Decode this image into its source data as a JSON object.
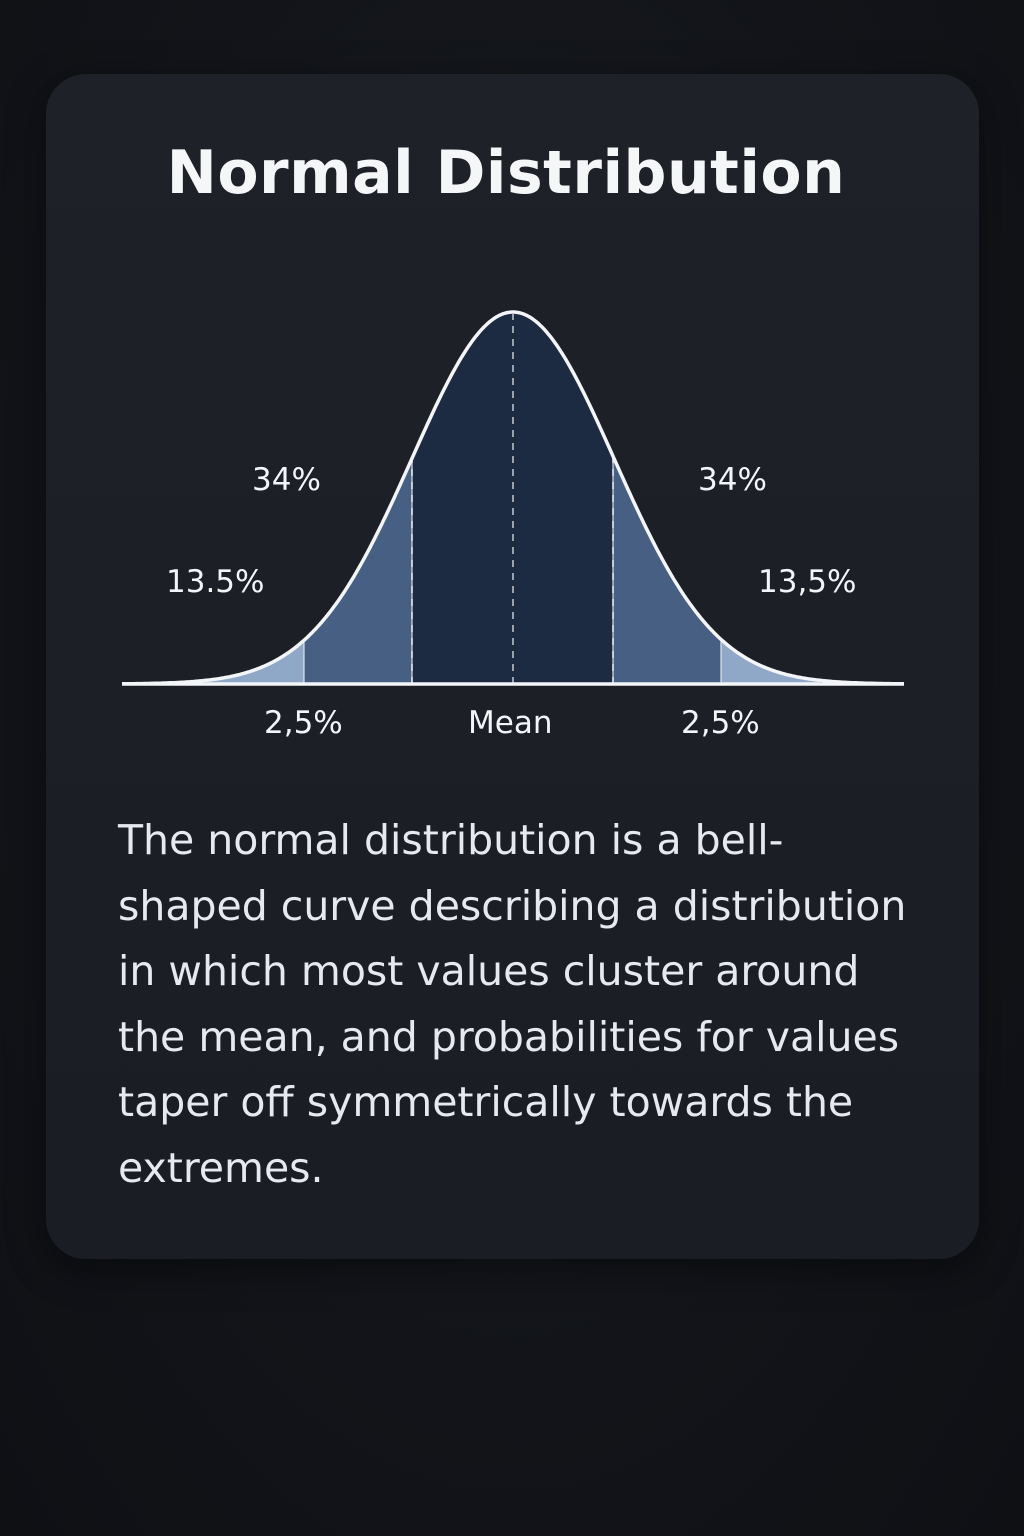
{
  "title": "Normal Distribution",
  "diagram": {
    "labels": {
      "left_34": "34%",
      "right_34": "34%",
      "left_13_5": "13.5%",
      "right_13_5": "13,5%",
      "left_2_5": "2,5%",
      "mean": "Mean",
      "right_2_5": "2,5%"
    },
    "colors": {
      "center": "#1c2a42",
      "inner": "#475f83",
      "outer": "#90a8c8",
      "tail": "#3c5478",
      "curve": "#f3f5f8"
    }
  },
  "description": "The normal distribution is a bell-shaped curve describing a distribution in which most values cluster around the mean, and probabilities for values taper off symmetrically towards the extremes."
}
